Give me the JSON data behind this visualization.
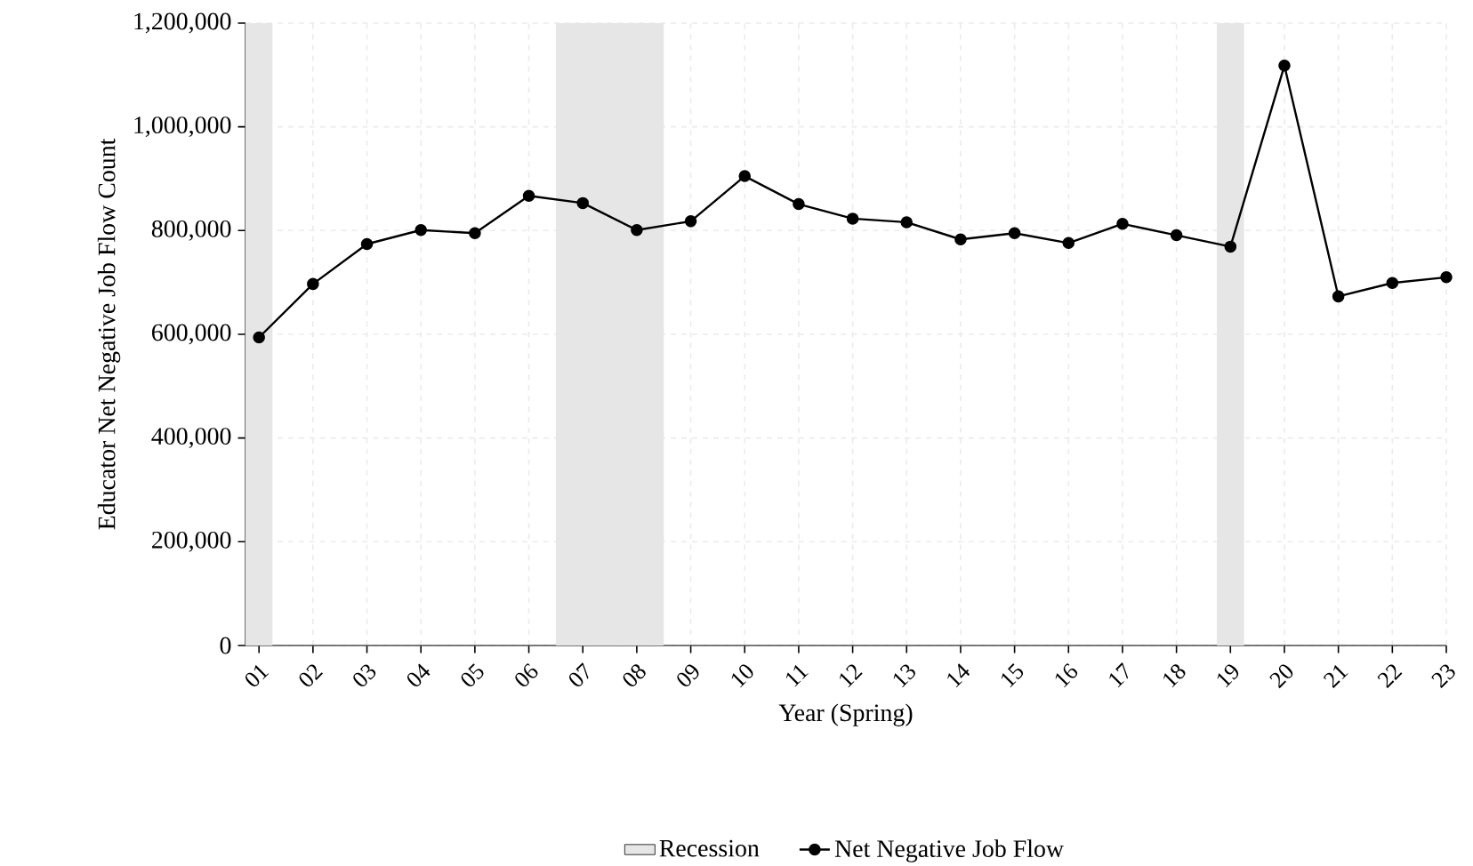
{
  "chart_data": {
    "type": "line",
    "xlabel": "Year (Spring)",
    "ylabel": "Educator Net Negative Job Flow Count",
    "x": [
      1,
      2,
      3,
      4,
      5,
      6,
      7,
      8,
      9,
      10,
      11,
      12,
      13,
      14,
      15,
      16,
      17,
      18,
      19,
      20,
      21,
      22,
      23
    ],
    "series": [
      {
        "name": "Net Negative Job Flow",
        "color": "#000000",
        "values": [
          594000,
          697000,
          774000,
          801000,
          795000,
          867000,
          853000,
          801000,
          818000,
          905000,
          851000,
          823000,
          816000,
          783000,
          795000,
          776000,
          813000,
          791000,
          769000,
          1118000,
          673000,
          699000,
          710000
        ]
      }
    ],
    "xlim": [
      0.75,
      23
    ],
    "xticks": [
      {
        "value": 1,
        "label": "01"
      },
      {
        "value": 2,
        "label": "02"
      },
      {
        "value": 3,
        "label": "03"
      },
      {
        "value": 4,
        "label": "04"
      },
      {
        "value": 5,
        "label": "05"
      },
      {
        "value": 6,
        "label": "06"
      },
      {
        "value": 7,
        "label": "07"
      },
      {
        "value": 8,
        "label": "08"
      },
      {
        "value": 9,
        "label": "09"
      },
      {
        "value": 10,
        "label": "10"
      },
      {
        "value": 11,
        "label": "11"
      },
      {
        "value": 12,
        "label": "12"
      },
      {
        "value": 13,
        "label": "13"
      },
      {
        "value": 14,
        "label": "14"
      },
      {
        "value": 15,
        "label": "15"
      },
      {
        "value": 16,
        "label": "16"
      },
      {
        "value": 17,
        "label": "17"
      },
      {
        "value": 18,
        "label": "18"
      },
      {
        "value": 19,
        "label": "19"
      },
      {
        "value": 20,
        "label": "20"
      },
      {
        "value": 21,
        "label": "21"
      },
      {
        "value": 22,
        "label": "22"
      },
      {
        "value": 23,
        "label": "23"
      }
    ],
    "ylim": [
      0,
      1200000
    ],
    "yticks": [
      0,
      {
        "value": 200000,
        "label": "200,000"
      },
      {
        "value": 400000,
        "label": "400,000"
      },
      {
        "value": 600000,
        "label": "600,000"
      },
      {
        "value": 800000,
        "label": "800,000"
      },
      {
        "value": 1000000,
        "label": "1,000,000"
      },
      {
        "value": 1200000,
        "label": "1,200,000"
      }
    ],
    "bands": [
      {
        "axis": "x",
        "from": 0.75,
        "to": 1.25,
        "label": "Recession",
        "color": "#e6e6e6"
      },
      {
        "axis": "x",
        "from": 6.5,
        "to": 8.5,
        "color": "#e6e6e6"
      },
      {
        "axis": "x",
        "from": 18.75,
        "to": 19.25,
        "color": "#e6e6e6"
      }
    ],
    "grid": true,
    "legend": "bottom",
    "marker": "circle",
    "line_style": "solid"
  }
}
